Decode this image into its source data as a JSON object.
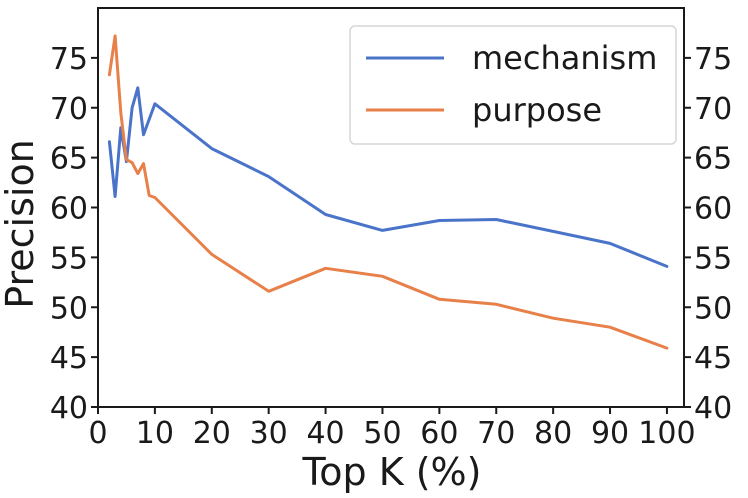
{
  "chart_data": {
    "type": "line",
    "title": "",
    "xlabel": "Top K (%)",
    "ylabel": "Precision",
    "xlim": [
      0,
      103
    ],
    "ylim": [
      40,
      80
    ],
    "xticks": [
      0,
      10,
      20,
      30,
      40,
      50,
      60,
      70,
      80,
      90,
      100
    ],
    "yticks": [
      40,
      45,
      50,
      55,
      60,
      65,
      70,
      75
    ],
    "right_axis_ticks": true,
    "grid": false,
    "legend_position": "top-right",
    "series": [
      {
        "name": "mechanism",
        "color": "#4a74c9",
        "x": [
          2,
          3,
          4,
          5,
          6,
          7,
          8,
          10,
          20,
          30,
          40,
          50,
          60,
          70,
          80,
          90,
          100
        ],
        "y": [
          66.6,
          61.1,
          68.0,
          64.6,
          70.0,
          72.0,
          67.3,
          70.4,
          65.9,
          63.1,
          59.3,
          57.7,
          58.7,
          58.8,
          57.6,
          56.4,
          54.1
        ]
      },
      {
        "name": "purpose",
        "color": "#e8804a",
        "x": [
          2,
          3,
          4,
          5,
          6,
          7,
          8,
          9,
          10,
          20,
          30,
          40,
          50,
          60,
          70,
          80,
          90,
          100
        ],
        "y": [
          73.3,
          77.2,
          69.5,
          64.8,
          64.5,
          63.4,
          64.4,
          61.2,
          61.0,
          55.3,
          51.6,
          53.9,
          53.1,
          50.8,
          50.3,
          48.9,
          48.0,
          45.9
        ]
      }
    ]
  }
}
